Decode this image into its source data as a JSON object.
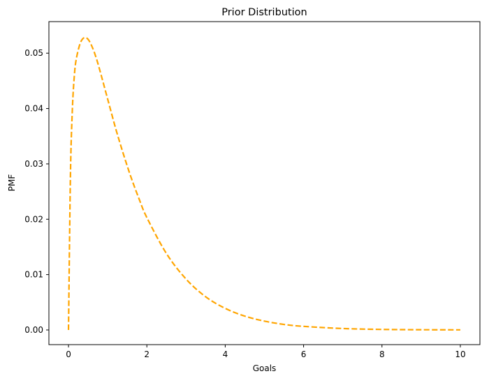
{
  "chart_data": {
    "type": "line",
    "title": "Prior Distribution",
    "xlabel": "Goals",
    "ylabel": "PMF",
    "xlim": [
      -0.5,
      10.5
    ],
    "ylim": [
      -0.00265,
      0.0557
    ],
    "xticks": [
      0,
      2,
      4,
      6,
      8,
      10
    ],
    "xtick_labels": [
      "0",
      "2",
      "4",
      "6",
      "8",
      "10"
    ],
    "yticks": [
      0.0,
      0.01,
      0.02,
      0.03,
      0.04,
      0.05
    ],
    "ytick_labels": [
      "0.00",
      "0.01",
      "0.02",
      "0.03",
      "0.04",
      "0.05"
    ],
    "grid": false,
    "legend": "none",
    "series": [
      {
        "color": "#FFA500",
        "line_style": "dashed",
        "x": [
          0,
          0.05,
          0.1,
          0.15,
          0.2,
          0.3,
          0.4,
          0.5,
          0.6,
          0.7,
          0.8,
          1.0,
          1.2,
          1.4,
          1.6,
          1.8,
          2.0,
          2.5,
          3.0,
          3.5,
          4.0,
          4.5,
          5.0,
          5.5,
          6.0,
          7.0,
          8.0,
          9.0,
          10.0
        ],
        "y": [
          0.0,
          0.028,
          0.04,
          0.046,
          0.049,
          0.0518,
          0.0528,
          0.0525,
          0.0512,
          0.0493,
          0.0469,
          0.0417,
          0.0365,
          0.0318,
          0.0275,
          0.0237,
          0.0203,
          0.0138,
          0.0092,
          0.006,
          0.0039,
          0.0025,
          0.0016,
          0.001,
          0.00065,
          0.00026,
          0.0001,
          4e-05,
          2e-05
        ]
      }
    ]
  }
}
